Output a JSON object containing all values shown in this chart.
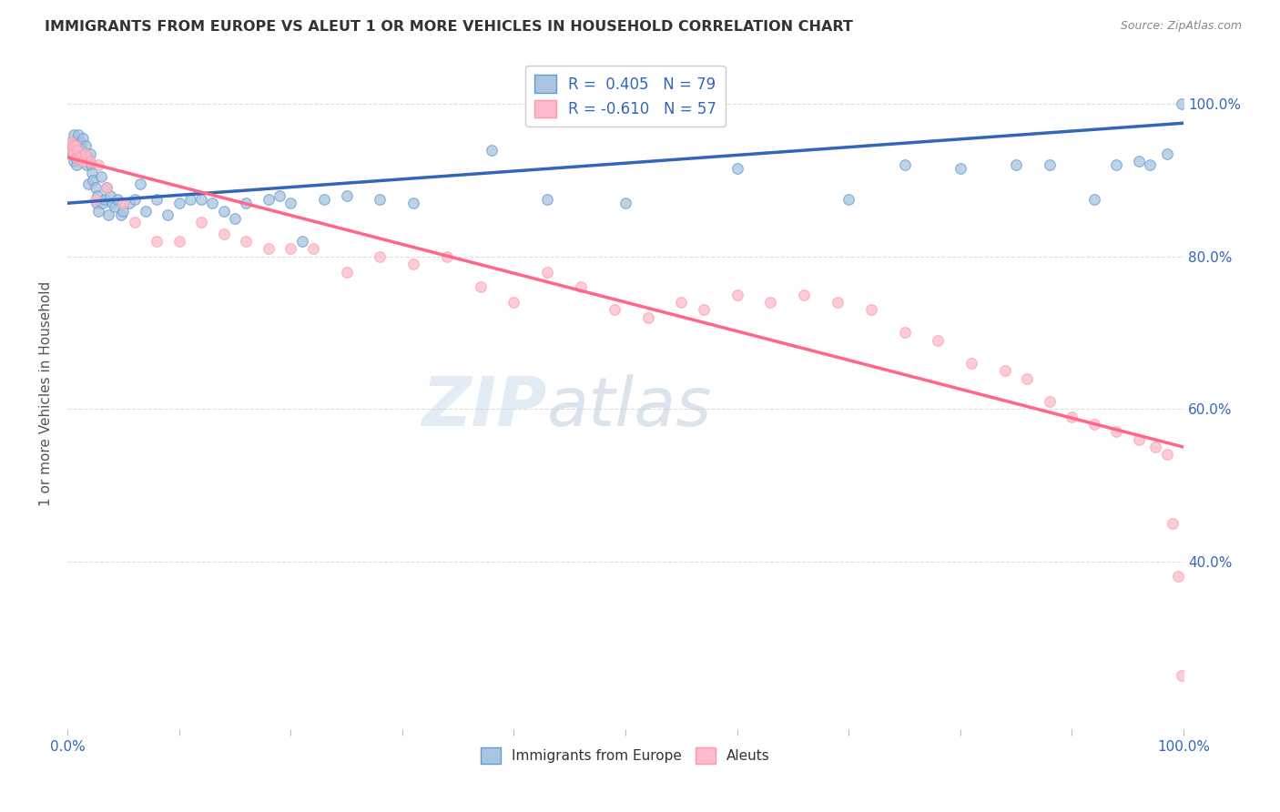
{
  "title": "IMMIGRANTS FROM EUROPE VS ALEUT 1 OR MORE VEHICLES IN HOUSEHOLD CORRELATION CHART",
  "source": "Source: ZipAtlas.com",
  "ylabel": "1 or more Vehicles in Household",
  "legend_blue_label": "R =  0.405   N = 79",
  "legend_pink_label": "R = -0.610   N = 57",
  "legend_blue_label2": "Immigrants from Europe",
  "legend_pink_label2": "Aleuts",
  "blue_scatter_x": [
    0.002,
    0.003,
    0.004,
    0.005,
    0.006,
    0.006,
    0.007,
    0.007,
    0.008,
    0.008,
    0.009,
    0.01,
    0.01,
    0.011,
    0.012,
    0.012,
    0.013,
    0.014,
    0.015,
    0.015,
    0.016,
    0.017,
    0.018,
    0.019,
    0.02,
    0.021,
    0.022,
    0.023,
    0.025,
    0.026,
    0.027,
    0.028,
    0.03,
    0.032,
    0.033,
    0.035,
    0.037,
    0.038,
    0.04,
    0.042,
    0.045,
    0.048,
    0.05,
    0.055,
    0.06,
    0.065,
    0.07,
    0.08,
    0.09,
    0.1,
    0.11,
    0.12,
    0.13,
    0.14,
    0.15,
    0.16,
    0.18,
    0.19,
    0.2,
    0.21,
    0.23,
    0.25,
    0.28,
    0.31,
    0.38,
    0.43,
    0.5,
    0.6,
    0.7,
    0.75,
    0.8,
    0.85,
    0.88,
    0.92,
    0.94,
    0.96,
    0.97,
    0.985,
    0.998
  ],
  "blue_scatter_y": [
    0.94,
    0.95,
    0.935,
    0.945,
    0.925,
    0.96,
    0.95,
    0.93,
    0.945,
    0.92,
    0.94,
    0.96,
    0.935,
    0.95,
    0.93,
    0.945,
    0.94,
    0.955,
    0.925,
    0.935,
    0.945,
    0.92,
    0.93,
    0.895,
    0.935,
    0.92,
    0.91,
    0.9,
    0.89,
    0.87,
    0.88,
    0.86,
    0.905,
    0.87,
    0.875,
    0.89,
    0.855,
    0.88,
    0.87,
    0.865,
    0.875,
    0.855,
    0.86,
    0.87,
    0.875,
    0.895,
    0.86,
    0.875,
    0.855,
    0.87,
    0.875,
    0.875,
    0.87,
    0.86,
    0.85,
    0.87,
    0.875,
    0.88,
    0.87,
    0.82,
    0.875,
    0.88,
    0.875,
    0.87,
    0.94,
    0.875,
    0.87,
    0.915,
    0.875,
    0.92,
    0.915,
    0.92,
    0.92,
    0.875,
    0.92,
    0.925,
    0.92,
    0.935,
    1.0
  ],
  "pink_scatter_x": [
    0.003,
    0.004,
    0.005,
    0.006,
    0.007,
    0.008,
    0.009,
    0.01,
    0.012,
    0.014,
    0.016,
    0.02,
    0.025,
    0.028,
    0.035,
    0.05,
    0.06,
    0.08,
    0.1,
    0.12,
    0.14,
    0.16,
    0.18,
    0.2,
    0.22,
    0.25,
    0.28,
    0.31,
    0.34,
    0.37,
    0.4,
    0.43,
    0.46,
    0.49,
    0.52,
    0.55,
    0.57,
    0.6,
    0.63,
    0.66,
    0.69,
    0.72,
    0.75,
    0.78,
    0.81,
    0.84,
    0.86,
    0.88,
    0.9,
    0.92,
    0.94,
    0.96,
    0.975,
    0.985,
    0.99,
    0.995,
    0.998
  ],
  "pink_scatter_y": [
    0.95,
    0.94,
    0.945,
    0.935,
    0.945,
    0.93,
    0.94,
    0.93,
    0.93,
    0.925,
    0.935,
    0.925,
    0.875,
    0.92,
    0.89,
    0.87,
    0.845,
    0.82,
    0.82,
    0.845,
    0.83,
    0.82,
    0.81,
    0.81,
    0.81,
    0.78,
    0.8,
    0.79,
    0.8,
    0.76,
    0.74,
    0.78,
    0.76,
    0.73,
    0.72,
    0.74,
    0.73,
    0.75,
    0.74,
    0.75,
    0.74,
    0.73,
    0.7,
    0.69,
    0.66,
    0.65,
    0.64,
    0.61,
    0.59,
    0.58,
    0.57,
    0.56,
    0.55,
    0.54,
    0.45,
    0.38,
    0.25
  ],
  "blue_line_x": [
    0.0,
    1.0
  ],
  "blue_line_y": [
    0.87,
    0.975
  ],
  "pink_line_x": [
    0.0,
    1.0
  ],
  "pink_line_y": [
    0.93,
    0.55
  ],
  "xlim": [
    0.0,
    1.0
  ],
  "ylim": [
    0.18,
    1.06
  ],
  "ytick_positions": [
    1.0,
    0.8,
    0.6,
    0.4
  ],
  "ytick_labels": [
    "100.0%",
    "80.0%",
    "60.0%",
    "40.0%"
  ],
  "xtick_positions": [
    0.0,
    0.1,
    0.2,
    0.3,
    0.4,
    0.5,
    0.6,
    0.7,
    0.8,
    0.9,
    1.0
  ],
  "xtick_show": {
    "0.0": "0.0%",
    "1.0": "100.0%"
  },
  "scatter_size": 70,
  "blue_fill_color": "#A8C4E0",
  "blue_edge_color": "#6699CC",
  "pink_fill_color": "#FFBBCC",
  "pink_edge_color": "#FF99AA",
  "blue_line_color": "#3366BB",
  "pink_line_color": "#FF6688",
  "watermark_text": "ZIP",
  "watermark_text2": "atlas",
  "grid_color": "#DDDDDD",
  "title_color": "#333333",
  "axis_label_color": "#555555",
  "tick_color": "#3366BB",
  "source_color": "#888888"
}
